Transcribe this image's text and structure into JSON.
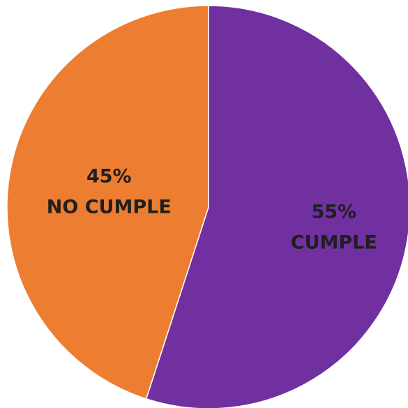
{
  "chart_data": {
    "type": "pie",
    "title": "",
    "start_angle_deg": 0,
    "direction": "clockwise",
    "slices": [
      {
        "label": "CUMPLE",
        "value": 55,
        "value_label": "55%",
        "color": "#7030A0"
      },
      {
        "label": "NO CUMPLE",
        "value": 45,
        "value_label": "45%",
        "color": "#ED7D31"
      }
    ]
  }
}
